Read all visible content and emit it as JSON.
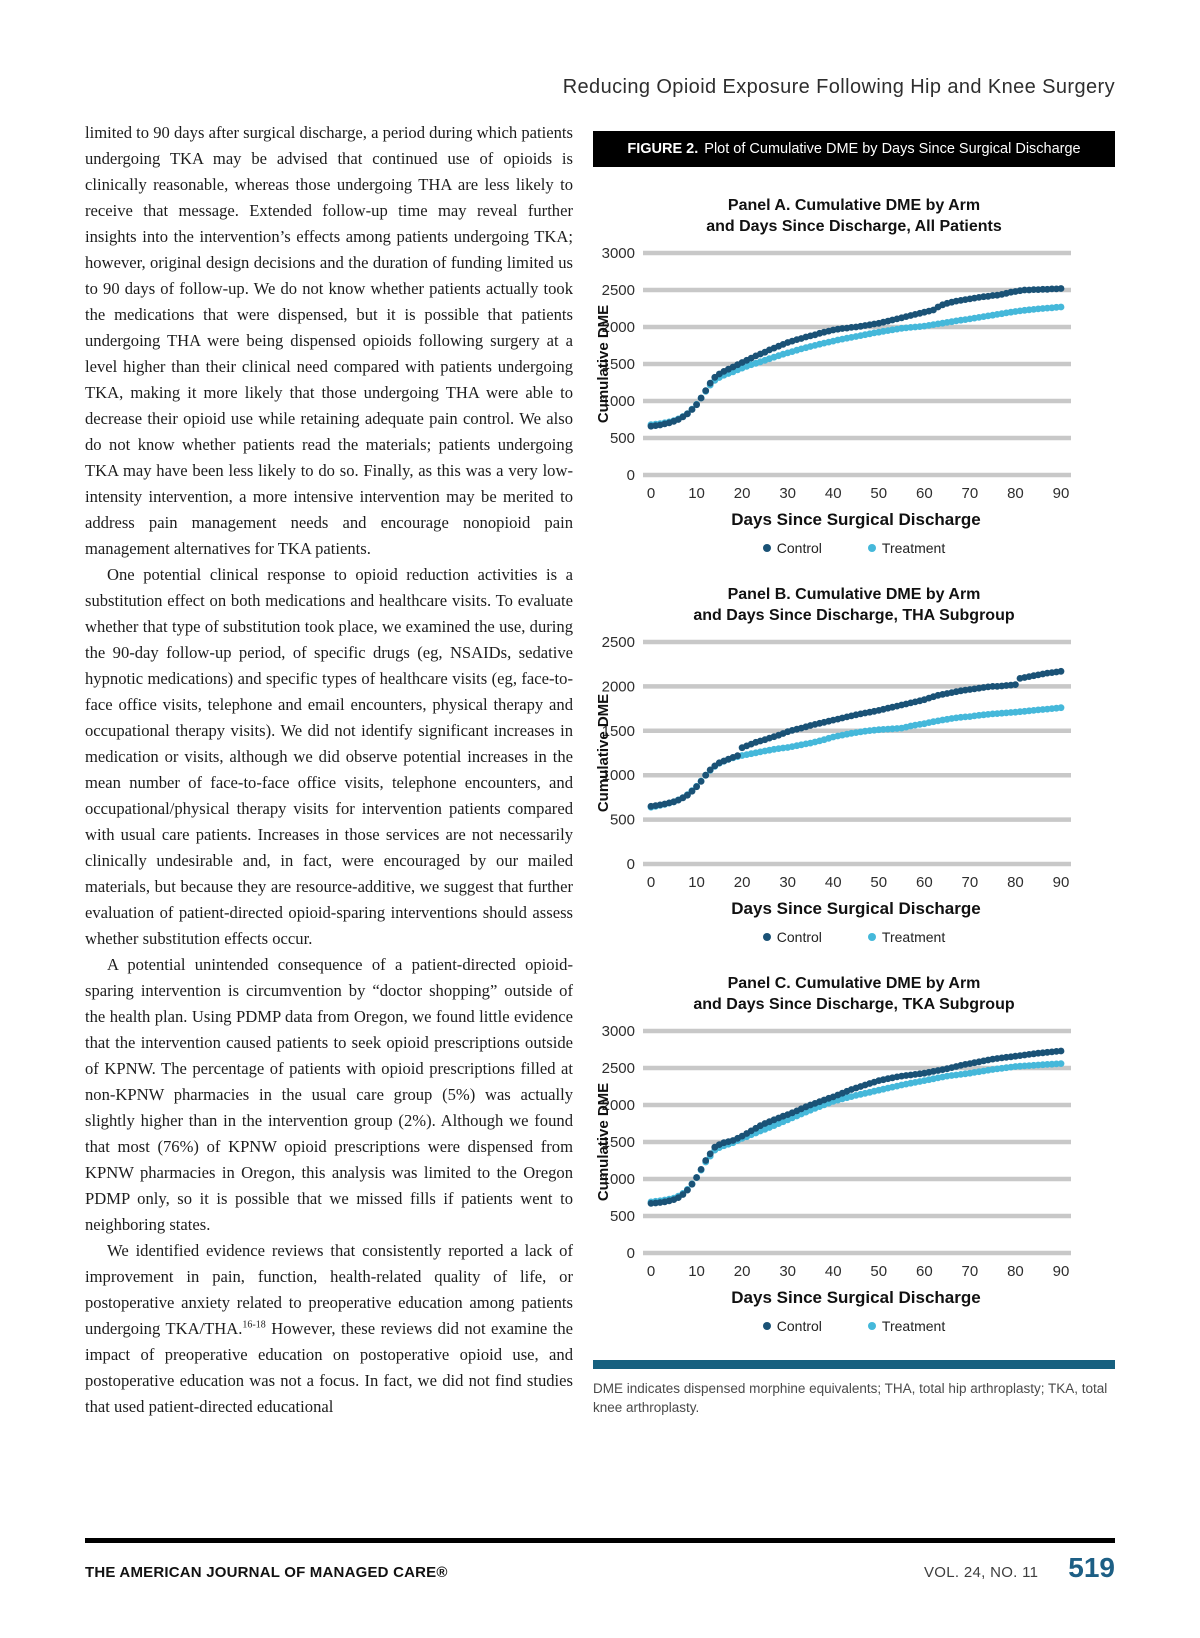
{
  "page": {
    "running_head": "Reducing Opioid Exposure Following Hip and Knee Surgery",
    "footer": {
      "journal": "THE AMERICAN JOURNAL OF MANAGED CARE®",
      "volume": "VOL. 24, NO. 11",
      "page_number": "519"
    }
  },
  "article": {
    "paragraphs": [
      "limited to 90 days after surgical discharge, a period during which patients undergoing TKA may be advised that continued use of opioids is clinically reasonable, whereas those undergoing THA are less likely to receive that message. Extended follow-up time may reveal further insights into the intervention’s effects among patients undergoing TKA; however, original design decisions and the duration of funding limited us to 90 days of follow-up. We do not know whether patients actually took the medications that were dispensed, but it is possible that patients undergoing THA were being dispensed opioids following surgery at a level higher than their clinical need compared with patients undergoing TKA, making it more likely that those undergoing THA were able to decrease their opioid use while retaining adequate pain control. We also do not know whether patients read the materials; patients undergoing TKA may have been less likely to do so. Finally, as this was a very low-intensity intervention, a more intensive intervention may be merited to address pain management needs and encourage nonopioid pain management alternatives for TKA patients.",
      "One potential clinical response to opioid reduction activities is a substitution effect on both medications and healthcare visits. To evaluate whether that type of substitution took place, we examined the use, during the 90-day follow-up period, of specific drugs (eg, NSAIDs, sedative hypnotic medications) and specific types of healthcare visits (eg, face-to-face office visits, telephone and email encounters, physical therapy and occupational therapy visits). We did not identify significant increases in medication or visits, although we did observe potential increases in the mean number of face-to-face office visits, telephone encounters, and occupational/physical therapy visits for intervention patients compared with usual care patients. Increases in those services are not necessarily clinically undesirable and, in fact, were encouraged by our mailed materials, but because they are resource-additive, we suggest that further evaluation of patient-directed opioid-sparing interventions should assess whether substitution effects occur.",
      "A potential unintended consequence of a patient-directed opioid-sparing intervention is circumvention by “doctor shopping” outside of the health plan. Using PDMP data from Oregon, we found little evidence that the intervention caused patients to seek opioid prescriptions outside of KPNW. The percentage of patients with opioid prescriptions filled at non-KPNW pharmacies in the usual care group (5%) was actually slightly higher than in the intervention group (2%). Although we found that most (76%) of KPNW opioid prescriptions were dispensed from KPNW pharmacies in Oregon, this analysis was limited to the Oregon PDMP only, so it is possible that we missed fills if patients went to neighboring states."
    ],
    "last_paragraph": {
      "before": "We identified evidence reviews that consistently reported a lack of improvement in pain, function, health-related quality of life, or postoperative anxiety related to preoperative education among patients undergoing TKA/THA.",
      "sup": "16-18",
      "after": " However, these reviews did not examine the impact of preoperative education on postoperative opioid use, and postoperative education was not a focus. In fact, we did not find studies that used patient-directed educational"
    }
  },
  "figure": {
    "label": "FIGURE 2.",
    "caption": "Plot of Cumulative DME by Days Since Surgical Discharge",
    "footnote": "DME indicates dispensed morphine equivalents; THA, total hip arthroplasty; TKA, total knee arthroplasty.",
    "colors": {
      "control": "#1a5276",
      "treatment": "#45b8da",
      "grid": "#c8c8c8",
      "divider": "#16607f"
    }
  },
  "chart_data": [
    {
      "type": "scatter",
      "title1": "Panel A. Cumulative DME by Arm",
      "title2": "and Days Since Discharge, All Patients",
      "xlabel": "Days Since Surgical Discharge",
      "ylabel": "Cumulative DME",
      "x_ticks": [
        0,
        10,
        20,
        30,
        40,
        50,
        60,
        70,
        80,
        90
      ],
      "y_ticks": [
        0,
        500,
        1000,
        1500,
        2000,
        2500,
        3000
      ],
      "xlim": [
        0,
        90
      ],
      "ylim": [
        0,
        3000
      ],
      "grid": "horizontal",
      "legend_position": "bottom",
      "series": [
        {
          "name": "Control",
          "color": "#1a5276",
          "x_start": 0,
          "x_step": 1,
          "values": [
            660,
            668,
            676,
            690,
            705,
            725,
            750,
            785,
            825,
            885,
            950,
            1040,
            1140,
            1240,
            1320,
            1365,
            1400,
            1430,
            1460,
            1490,
            1520,
            1550,
            1580,
            1610,
            1635,
            1660,
            1690,
            1715,
            1740,
            1765,
            1790,
            1810,
            1830,
            1845,
            1865,
            1880,
            1895,
            1915,
            1930,
            1945,
            1960,
            1970,
            1980,
            1985,
            1995,
            2000,
            2010,
            2020,
            2030,
            2040,
            2050,
            2065,
            2080,
            2095,
            2110,
            2125,
            2140,
            2155,
            2170,
            2185,
            2200,
            2215,
            2230,
            2270,
            2300,
            2320,
            2335,
            2350,
            2360,
            2370,
            2380,
            2390,
            2400,
            2410,
            2415,
            2425,
            2430,
            2440,
            2455,
            2470,
            2480,
            2490,
            2500,
            2500,
            2505,
            2505,
            2510,
            2510,
            2515,
            2515,
            2520
          ]
        },
        {
          "name": "Treatment",
          "color": "#45b8da",
          "x_start": 0,
          "x_step": 1,
          "values": [
            680,
            688,
            695,
            705,
            718,
            735,
            758,
            790,
            830,
            890,
            955,
            1040,
            1130,
            1215,
            1280,
            1318,
            1348,
            1372,
            1395,
            1420,
            1445,
            1468,
            1490,
            1510,
            1530,
            1550,
            1572,
            1592,
            1612,
            1632,
            1650,
            1668,
            1686,
            1704,
            1720,
            1736,
            1752,
            1768,
            1782,
            1796,
            1810,
            1824,
            1836,
            1848,
            1860,
            1872,
            1884,
            1896,
            1908,
            1920,
            1930,
            1942,
            1952,
            1962,
            1972,
            1982,
            1988,
            1994,
            2000,
            2006,
            2012,
            2022,
            2032,
            2042,
            2052,
            2062,
            2072,
            2082,
            2092,
            2100,
            2110,
            2120,
            2130,
            2140,
            2150,
            2160,
            2170,
            2180,
            2190,
            2200,
            2210,
            2218,
            2226,
            2232,
            2238,
            2244,
            2250,
            2256,
            2260,
            2266,
            2270
          ]
        }
      ]
    },
    {
      "type": "scatter",
      "title1": "Panel B. Cumulative DME by Arm",
      "title2": "and Days Since Discharge, THA Subgroup",
      "xlabel": "Days Since Surgical Discharge",
      "ylabel": "Cumulative DME",
      "x_ticks": [
        0,
        10,
        20,
        30,
        40,
        50,
        60,
        70,
        80,
        90
      ],
      "y_ticks": [
        0,
        500,
        1000,
        1500,
        2000,
        2500
      ],
      "xlim": [
        0,
        90
      ],
      "ylim": [
        0,
        2500
      ],
      "grid": "horizontal",
      "legend_position": "bottom",
      "series": [
        {
          "name": "Control",
          "color": "#1a5276",
          "x_start": 0,
          "x_step": 1,
          "values": [
            650,
            658,
            666,
            676,
            688,
            700,
            720,
            745,
            775,
            820,
            870,
            930,
            1000,
            1060,
            1105,
            1140,
            1160,
            1180,
            1200,
            1220,
            1310,
            1330,
            1350,
            1370,
            1385,
            1400,
            1418,
            1434,
            1450,
            1470,
            1490,
            1505,
            1518,
            1530,
            1545,
            1560,
            1572,
            1584,
            1596,
            1608,
            1620,
            1632,
            1644,
            1656,
            1668,
            1680,
            1690,
            1700,
            1710,
            1720,
            1730,
            1742,
            1754,
            1766,
            1778,
            1790,
            1802,
            1814,
            1826,
            1838,
            1850,
            1868,
            1884,
            1900,
            1910,
            1920,
            1930,
            1940,
            1950,
            1958,
            1965,
            1972,
            1980,
            1988,
            1994,
            2000,
            2000,
            2005,
            2010,
            2015,
            2020,
            2090,
            2100,
            2110,
            2120,
            2130,
            2140,
            2150,
            2155,
            2162,
            2170
          ]
        },
        {
          "name": "Treatment",
          "color": "#45b8da",
          "x_start": 0,
          "x_step": 1,
          "values": [
            640,
            650,
            660,
            672,
            686,
            700,
            722,
            748,
            780,
            825,
            875,
            935,
            1000,
            1055,
            1100,
            1135,
            1158,
            1178,
            1195,
            1210,
            1222,
            1232,
            1242,
            1252,
            1262,
            1272,
            1282,
            1292,
            1300,
            1306,
            1312,
            1322,
            1332,
            1342,
            1352,
            1362,
            1374,
            1386,
            1400,
            1415,
            1430,
            1442,
            1452,
            1462,
            1472,
            1480,
            1488,
            1496,
            1502,
            1507,
            1512,
            1516,
            1519,
            1522,
            1526,
            1530,
            1542,
            1554,
            1564,
            1572,
            1580,
            1592,
            1602,
            1612,
            1622,
            1630,
            1638,
            1645,
            1652,
            1656,
            1660,
            1668,
            1674,
            1680,
            1685,
            1690,
            1694,
            1698,
            1702,
            1706,
            1710,
            1715,
            1720,
            1725,
            1730,
            1735,
            1740,
            1744,
            1750,
            1755,
            1760
          ]
        }
      ]
    },
    {
      "type": "scatter",
      "title1": "Panel C. Cumulative DME by Arm",
      "title2": "and Days Since Discharge, TKA Subgroup",
      "xlabel": "Days Since Surgical Discharge",
      "ylabel": "Cumulative DME",
      "x_ticks": [
        0,
        10,
        20,
        30,
        40,
        50,
        60,
        70,
        80,
        90
      ],
      "y_ticks": [
        0,
        500,
        1000,
        1500,
        2000,
        2500,
        3000
      ],
      "xlim": [
        0,
        90
      ],
      "ylim": [
        0,
        3000
      ],
      "grid": "horizontal",
      "legend_position": "bottom",
      "series": [
        {
          "name": "Control",
          "color": "#1a5276",
          "x_start": 0,
          "x_step": 1,
          "values": [
            670,
            676,
            682,
            692,
            705,
            722,
            748,
            790,
            850,
            930,
            1020,
            1130,
            1250,
            1340,
            1430,
            1465,
            1490,
            1505,
            1520,
            1550,
            1580,
            1615,
            1650,
            1685,
            1720,
            1750,
            1775,
            1800,
            1825,
            1848,
            1870,
            1895,
            1920,
            1948,
            1975,
            2000,
            2022,
            2045,
            2068,
            2090,
            2110,
            2135,
            2160,
            2185,
            2210,
            2230,
            2250,
            2270,
            2290,
            2310,
            2330,
            2342,
            2355,
            2368,
            2380,
            2390,
            2398,
            2406,
            2414,
            2422,
            2430,
            2442,
            2454,
            2466,
            2478,
            2490,
            2505,
            2520,
            2535,
            2548,
            2560,
            2572,
            2584,
            2596,
            2608,
            2620,
            2628,
            2636,
            2644,
            2652,
            2660,
            2668,
            2676,
            2684,
            2692,
            2700,
            2706,
            2712,
            2718,
            2724,
            2730
          ]
        },
        {
          "name": "Treatment",
          "color": "#45b8da",
          "x_start": 0,
          "x_step": 1,
          "values": [
            690,
            698,
            706,
            716,
            728,
            742,
            768,
            805,
            860,
            935,
            1020,
            1120,
            1230,
            1310,
            1390,
            1425,
            1450,
            1470,
            1490,
            1520,
            1548,
            1572,
            1598,
            1622,
            1648,
            1670,
            1696,
            1722,
            1748,
            1774,
            1800,
            1826,
            1852,
            1878,
            1904,
            1930,
            1954,
            1978,
            2002,
            2026,
            2050,
            2066,
            2082,
            2098,
            2114,
            2130,
            2144,
            2158,
            2172,
            2186,
            2200,
            2214,
            2228,
            2242,
            2256,
            2270,
            2282,
            2294,
            2306,
            2318,
            2330,
            2342,
            2354,
            2366,
            2378,
            2390,
            2398,
            2406,
            2414,
            2422,
            2430,
            2440,
            2450,
            2460,
            2470,
            2480,
            2488,
            2496,
            2504,
            2512,
            2520,
            2524,
            2528,
            2532,
            2536,
            2540,
            2544,
            2548,
            2552,
            2556,
            2560
          ]
        }
      ]
    }
  ]
}
